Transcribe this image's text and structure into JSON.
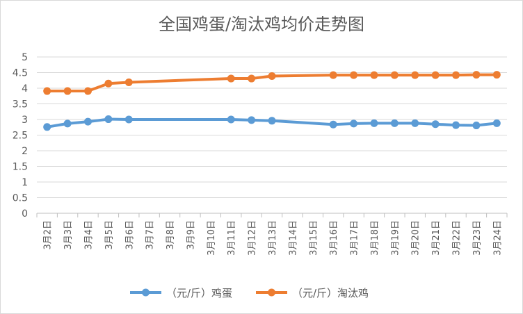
{
  "chart_data": {
    "type": "line",
    "title": "全国鸡蛋/淘汰鸡均价走势图",
    "xlabel": "",
    "ylabel": "",
    "ylim": [
      0,
      5
    ],
    "yticks": [
      "0",
      "0.5",
      "1",
      "1.5",
      "2",
      "2.5",
      "3",
      "3.5",
      "4",
      "4.5",
      "5"
    ],
    "grid": true,
    "legend_position": "bottom",
    "categories": [
      "3月2日",
      "3月3日",
      "3月4日",
      "3月5日",
      "3月6日",
      "3月7日",
      "3月8日",
      "3月9日",
      "3月10日",
      "3月11日",
      "3月12日",
      "3月13日",
      "3月14日",
      "3月15日",
      "3月16日",
      "3月17日",
      "3月18日",
      "3月19日",
      "3月20日",
      "3月21日",
      "3月22日",
      "3月23日",
      "3月24日"
    ],
    "series": [
      {
        "name": "（元/斤）鸡蛋",
        "color": "#5b9bd5",
        "values": [
          2.76,
          2.87,
          2.93,
          3.01,
          3.0,
          null,
          null,
          null,
          null,
          3.0,
          2.98,
          2.96,
          null,
          null,
          2.84,
          2.87,
          2.88,
          2.88,
          2.88,
          2.85,
          2.82,
          2.81,
          2.88
        ]
      },
      {
        "name": "（元/斤）淘汰鸡",
        "color": "#ed7d31",
        "values": [
          3.91,
          3.91,
          3.91,
          4.15,
          4.19,
          null,
          null,
          null,
          null,
          4.31,
          4.31,
          4.39,
          null,
          null,
          4.42,
          4.42,
          4.42,
          4.42,
          4.42,
          4.42,
          4.42,
          4.43,
          4.43
        ]
      }
    ]
  }
}
